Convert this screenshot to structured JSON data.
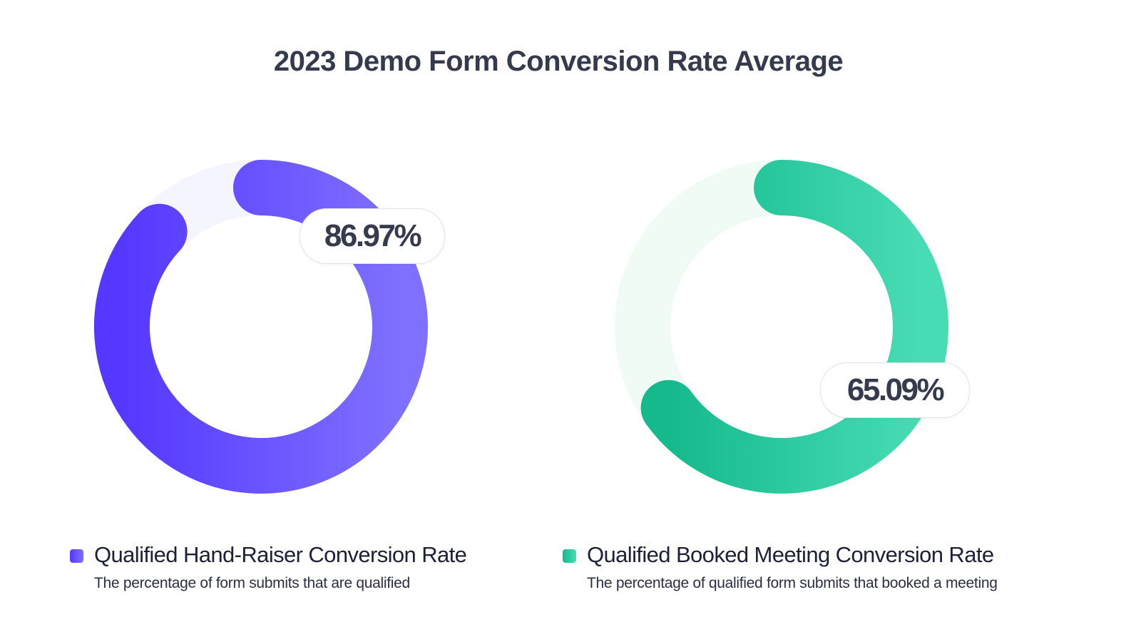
{
  "chart_data": {
    "type": "donut",
    "title": "2023 Demo Form Conversion Rate Average",
    "series": [
      {
        "name": "Qualified Hand-Raiser Conversion Rate",
        "description": "The percentage of form submits that are qualified",
        "value": 86.97,
        "label": "86.97%",
        "max": 100,
        "color_start": "#5438ff",
        "color_end": "#8070ff",
        "track_color": "#f5f5ff"
      },
      {
        "name": "Qualified Booked Meeting Conversion Rate",
        "description": "The percentage of qualified form submits that booked a meeting",
        "value": 65.09,
        "label": "65.09%",
        "max": 100,
        "color_start": "#15b98c",
        "color_end": "#48dcb5",
        "track_color": "#f0fbf6"
      }
    ],
    "legend_position": "bottom"
  }
}
